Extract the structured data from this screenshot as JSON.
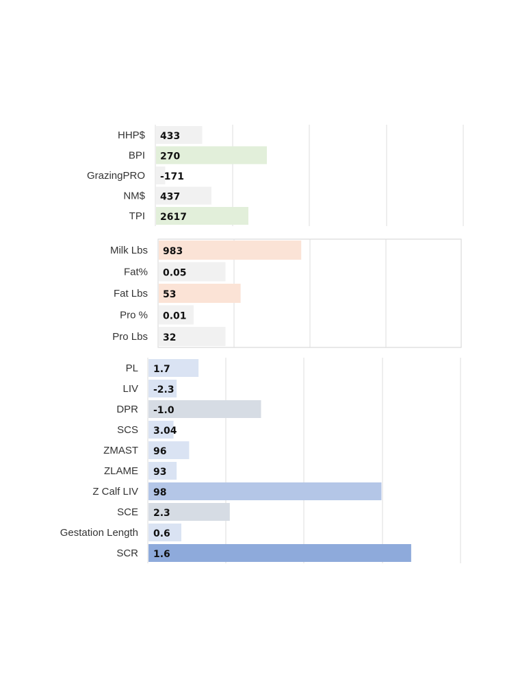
{
  "colors": {
    "gray": "#f1f1f1",
    "green": "#e2efda",
    "peach": "#fbe3d6",
    "blue_light": "#dae3f3",
    "blue_gray": "#d6dce4",
    "blue_mid": "#b4c6e7",
    "blue_dark": "#8eaadb",
    "gridline": "#dedede",
    "panel_border": "#d9d9d9"
  },
  "chart_data": [
    {
      "type": "bar",
      "orientation": "horizontal",
      "categories": [
        "HHP$",
        "BPI",
        "GrazingPRO",
        "NM$",
        "TPI"
      ],
      "values": [
        433,
        270,
        -171,
        437,
        2617
      ],
      "value_labels": [
        "433",
        "270",
        "-171",
        "437",
        "2617"
      ],
      "bar_colors": [
        "gray",
        "green",
        "gray",
        "gray",
        "green"
      ],
      "bar_fraction": [
        0.15,
        0.36,
        0.03,
        0.18,
        0.3
      ],
      "grid": true,
      "border": false
    },
    {
      "type": "bar",
      "orientation": "horizontal",
      "categories": [
        "Milk Lbs",
        "Fat%",
        "Fat Lbs",
        "Pro %",
        "Pro Lbs"
      ],
      "values": [
        983,
        0.05,
        53,
        0.01,
        32
      ],
      "value_labels": [
        "983",
        "0.05",
        "53",
        "0.01",
        "32"
      ],
      "bar_colors": [
        "peach",
        "gray",
        "peach",
        "gray",
        "gray"
      ],
      "bar_fraction": [
        0.47,
        0.22,
        0.27,
        0.115,
        0.22
      ],
      "grid": true,
      "border": true
    },
    {
      "type": "bar",
      "orientation": "horizontal",
      "categories": [
        "PL",
        "LIV",
        "DPR",
        "SCS",
        "ZMAST",
        "ZLAME",
        "Z Calf LIV",
        "SCE",
        "Gestation Length",
        "SCR"
      ],
      "values": [
        1.7,
        -2.3,
        -1.0,
        3.04,
        96,
        93,
        98,
        2.3,
        0.6,
        1.6
      ],
      "value_labels": [
        "1.7",
        "-2.3",
        "-1.0",
        "3.04",
        "96",
        "93",
        "98",
        "2.3",
        "0.6",
        "1.6"
      ],
      "bar_colors": [
        "blue_light",
        "blue_light",
        "blue_gray",
        "blue_light",
        "blue_light",
        "blue_light",
        "blue_mid",
        "blue_gray",
        "blue_light",
        "blue_dark"
      ],
      "bar_fraction": [
        0.16,
        0.09,
        0.36,
        0.08,
        0.13,
        0.09,
        0.745,
        0.26,
        0.105,
        0.84
      ],
      "grid": true,
      "border": false
    }
  ]
}
